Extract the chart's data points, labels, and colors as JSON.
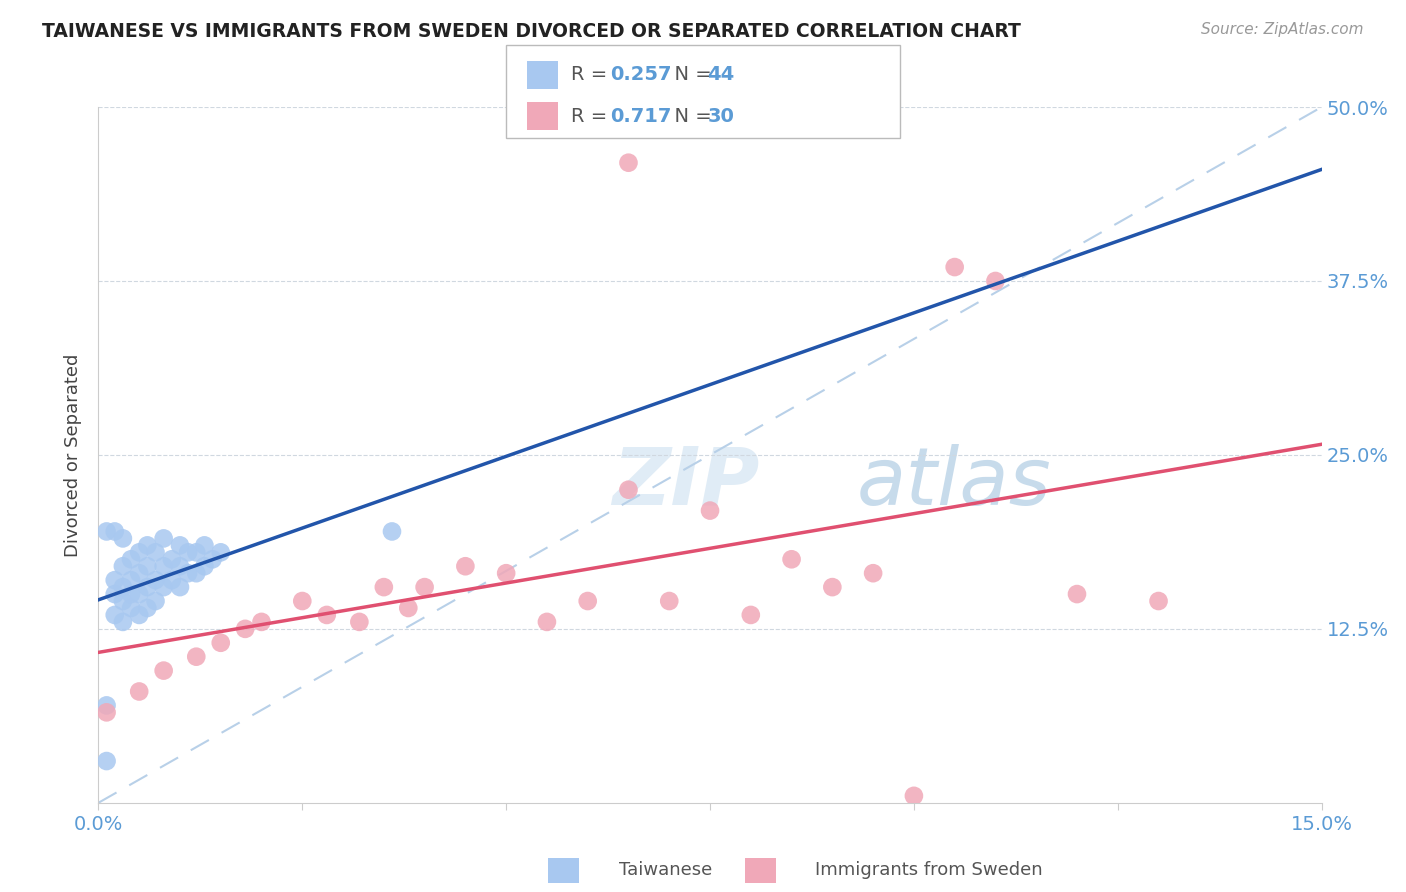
{
  "title": "TAIWANESE VS IMMIGRANTS FROM SWEDEN DIVORCED OR SEPARATED CORRELATION CHART",
  "source": "Source: ZipAtlas.com",
  "tick_color": "#5b9bd5",
  "ylabel": "Divorced or Separated",
  "xlim": [
    0.0,
    0.15
  ],
  "ylim": [
    0.0,
    0.5
  ],
  "R_taiwanese": 0.257,
  "N_taiwanese": 44,
  "R_swedish": 0.717,
  "N_swedish": 30,
  "taiwanese_color": "#a8c8f0",
  "swedish_color": "#f0a8b8",
  "taiwanese_line_color": "#2255aa",
  "swedish_line_color": "#e05070",
  "dashed_line_color": "#b8d0e8",
  "watermark_zip": "ZIP",
  "watermark_atlas": "atlas",
  "taiwanese_x": [
    0.001,
    0.001,
    0.002,
    0.002,
    0.002,
    0.003,
    0.003,
    0.003,
    0.003,
    0.004,
    0.004,
    0.004,
    0.004,
    0.005,
    0.005,
    0.005,
    0.005,
    0.006,
    0.006,
    0.006,
    0.006,
    0.007,
    0.007,
    0.007,
    0.008,
    0.008,
    0.008,
    0.009,
    0.009,
    0.01,
    0.01,
    0.01,
    0.011,
    0.011,
    0.012,
    0.012,
    0.013,
    0.013,
    0.014,
    0.015,
    0.001,
    0.002,
    0.003,
    0.036
  ],
  "taiwanese_y": [
    0.03,
    0.07,
    0.135,
    0.15,
    0.16,
    0.13,
    0.145,
    0.155,
    0.17,
    0.14,
    0.15,
    0.16,
    0.175,
    0.135,
    0.15,
    0.165,
    0.18,
    0.14,
    0.155,
    0.17,
    0.185,
    0.145,
    0.16,
    0.18,
    0.155,
    0.17,
    0.19,
    0.16,
    0.175,
    0.155,
    0.17,
    0.185,
    0.165,
    0.18,
    0.165,
    0.18,
    0.17,
    0.185,
    0.175,
    0.18,
    0.195,
    0.195,
    0.19,
    0.195
  ],
  "swedish_x": [
    0.001,
    0.005,
    0.008,
    0.012,
    0.015,
    0.018,
    0.02,
    0.025,
    0.028,
    0.032,
    0.035,
    0.038,
    0.04,
    0.045,
    0.05,
    0.055,
    0.06,
    0.065,
    0.07,
    0.075,
    0.08,
    0.085,
    0.09,
    0.095,
    0.1,
    0.105,
    0.11,
    0.12,
    0.13,
    0.065
  ],
  "swedish_y": [
    0.065,
    0.08,
    0.095,
    0.105,
    0.115,
    0.125,
    0.13,
    0.145,
    0.135,
    0.13,
    0.155,
    0.14,
    0.155,
    0.17,
    0.165,
    0.13,
    0.145,
    0.225,
    0.145,
    0.21,
    0.135,
    0.175,
    0.155,
    0.165,
    0.005,
    0.385,
    0.375,
    0.15,
    0.145,
    0.46
  ]
}
